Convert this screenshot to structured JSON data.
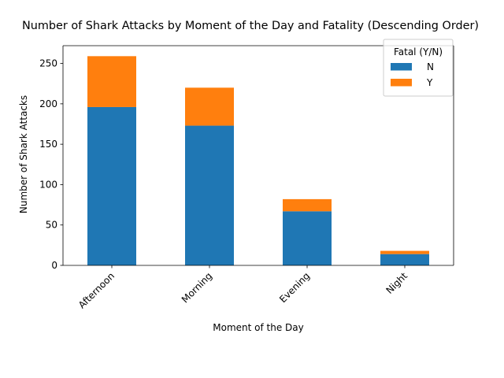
{
  "chart_data": {
    "type": "bar",
    "stacked": true,
    "title": "Number of Shark Attacks by Moment of the Day and Fatality (Descending Order)",
    "xlabel": "Moment of the Day",
    "ylabel": "Number of Shark Attacks",
    "categories": [
      "Afternoon",
      "Morning",
      "Evening",
      "Night"
    ],
    "series": [
      {
        "name": "N",
        "color": "#1f77b4",
        "values": [
          196,
          173,
          67,
          14
        ]
      },
      {
        "name": "Y",
        "color": "#ff7f0e",
        "values": [
          63,
          47,
          15,
          4
        ]
      }
    ],
    "ylim": [
      0,
      272
    ],
    "yticks": [
      0,
      50,
      100,
      150,
      200,
      250
    ],
    "grid": false,
    "legend": {
      "title": "Fatal (Y/N)",
      "position": "top-right"
    }
  }
}
